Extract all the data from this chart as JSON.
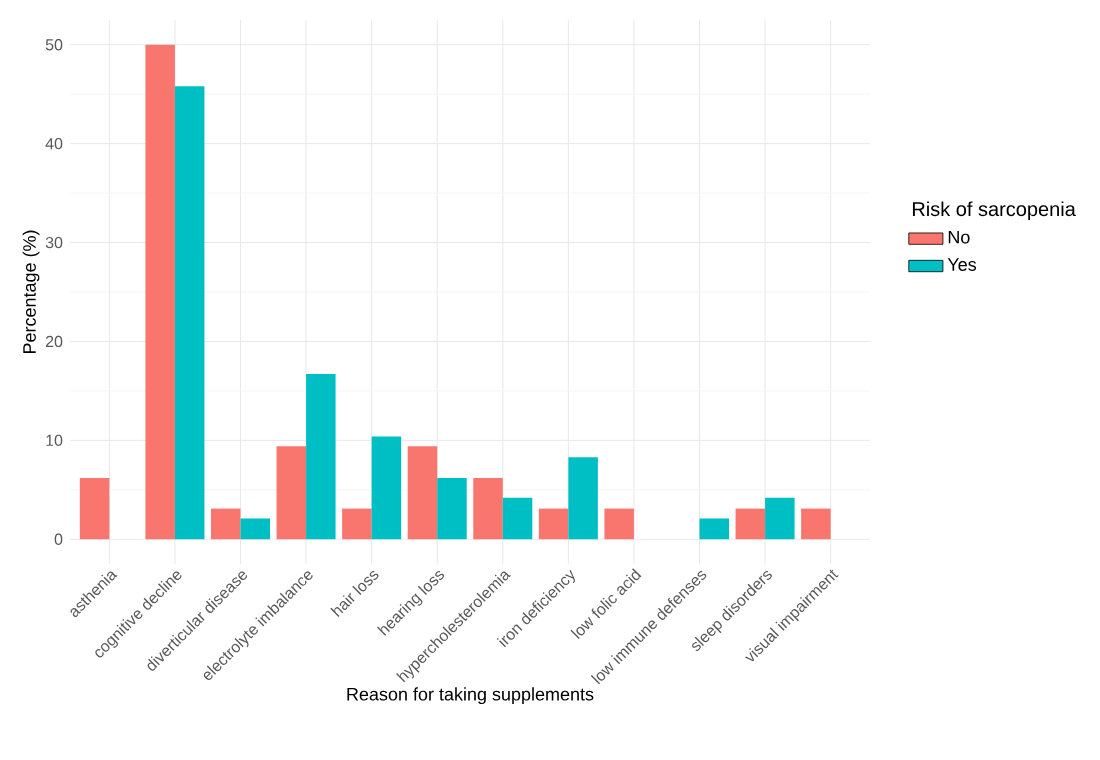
{
  "chart_data": {
    "type": "bar",
    "xlabel": "Reason for taking supplements",
    "ylabel": "Percentage (%)",
    "legend_title": "Risk of sarcopenia",
    "categories": [
      "asthenia",
      "cognitive decline",
      "diverticular disease",
      "electrolyte imbalance",
      "hair loss",
      "hearing loss",
      "hypercholesterolemia",
      "iron deficiency",
      "low folic acid",
      "low immune defenses",
      "sleep disorders",
      "visual impairment"
    ],
    "series": [
      {
        "name": "No",
        "color": "#f8766d",
        "values": [
          6.2,
          50,
          3.1,
          9.4,
          3.1,
          9.4,
          6.2,
          3.1,
          3.1,
          null,
          3.1,
          3.1
        ]
      },
      {
        "name": "Yes",
        "color": "#00bfc4",
        "values": [
          null,
          45.8,
          2.1,
          16.7,
          10.4,
          6.2,
          4.2,
          8.3,
          null,
          2.1,
          4.2,
          null
        ]
      }
    ],
    "ylim": [
      -2.5,
      52.5
    ],
    "yticks": [
      0,
      10,
      20,
      30,
      40,
      50
    ],
    "grid": true,
    "legend": "right"
  }
}
